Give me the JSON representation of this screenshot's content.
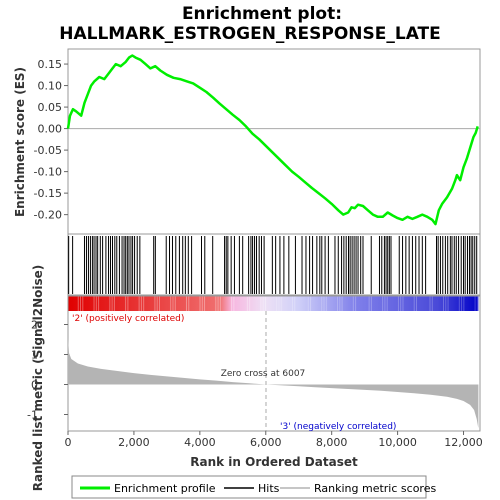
{
  "title_line1": "Enrichment plot:",
  "title_line2": "HALLMARK_ESTROGEN_RESPONSE_LATE",
  "es_ylabel": "Enrichment score (ES)",
  "metric_ylabel": "Ranked list metric (Signal2Noise)",
  "xlabel": "Rank in Ordered Dataset",
  "positive_label": "'2' (positively correlated)",
  "negative_label": "'3' (negatively correlated)",
  "zero_cross_label": "Zero cross at 6007",
  "legend": {
    "enrichment": "Enrichment profile",
    "hits": "Hits",
    "ranking": "Ranking metric scores"
  },
  "colors": {
    "profile": "#00ee00",
    "positive": "#dd0000",
    "negative": "#0000cc",
    "metric_fill": "#b4b4b4"
  },
  "chart_data": {
    "type": "line",
    "xlim": [
      0,
      12500
    ],
    "x_ticks": [
      0,
      2000,
      4000,
      6000,
      8000,
      10000,
      12000
    ],
    "x_tick_labels": [
      "0",
      "2,000",
      "4,000",
      "6,000",
      "8,000",
      "10,000",
      "12,000"
    ],
    "total_genes": 12450,
    "zero_cross": 6007,
    "es": {
      "ylim": [
        -0.245,
        0.185
      ],
      "y_ticks": [
        0.15,
        0.1,
        0.05,
        0.0,
        -0.05,
        -0.1,
        -0.15,
        -0.2
      ],
      "y_tick_labels": [
        "0.15",
        "0.10",
        "0.05",
        "0.00",
        "-0.05",
        "-0.10",
        "-0.15",
        "-0.20"
      ],
      "profile": [
        [
          0,
          0.0
        ],
        [
          60,
          0.03
        ],
        [
          150,
          0.045
        ],
        [
          250,
          0.04
        ],
        [
          400,
          0.03
        ],
        [
          500,
          0.06
        ],
        [
          600,
          0.08
        ],
        [
          700,
          0.1
        ],
        [
          800,
          0.11
        ],
        [
          950,
          0.12
        ],
        [
          1100,
          0.115
        ],
        [
          1250,
          0.13
        ],
        [
          1350,
          0.14
        ],
        [
          1450,
          0.15
        ],
        [
          1600,
          0.145
        ],
        [
          1750,
          0.155
        ],
        [
          1850,
          0.165
        ],
        [
          1950,
          0.17
        ],
        [
          2050,
          0.165
        ],
        [
          2200,
          0.16
        ],
        [
          2350,
          0.15
        ],
        [
          2500,
          0.14
        ],
        [
          2650,
          0.145
        ],
        [
          2800,
          0.135
        ],
        [
          3000,
          0.125
        ],
        [
          3200,
          0.118
        ],
        [
          3400,
          0.115
        ],
        [
          3600,
          0.11
        ],
        [
          3800,
          0.105
        ],
        [
          4000,
          0.095
        ],
        [
          4200,
          0.085
        ],
        [
          4400,
          0.072
        ],
        [
          4600,
          0.058
        ],
        [
          4800,
          0.045
        ],
        [
          5000,
          0.032
        ],
        [
          5200,
          0.02
        ],
        [
          5400,
          0.005
        ],
        [
          5600,
          -0.012
        ],
        [
          5800,
          -0.025
        ],
        [
          6000,
          -0.04
        ],
        [
          6200,
          -0.055
        ],
        [
          6400,
          -0.07
        ],
        [
          6600,
          -0.085
        ],
        [
          6800,
          -0.1
        ],
        [
          7000,
          -0.112
        ],
        [
          7200,
          -0.125
        ],
        [
          7400,
          -0.138
        ],
        [
          7600,
          -0.15
        ],
        [
          7800,
          -0.162
        ],
        [
          8000,
          -0.175
        ],
        [
          8200,
          -0.19
        ],
        [
          8350,
          -0.2
        ],
        [
          8500,
          -0.195
        ],
        [
          8600,
          -0.183
        ],
        [
          8700,
          -0.185
        ],
        [
          8800,
          -0.177
        ],
        [
          8950,
          -0.18
        ],
        [
          9100,
          -0.19
        ],
        [
          9250,
          -0.2
        ],
        [
          9400,
          -0.205
        ],
        [
          9550,
          -0.205
        ],
        [
          9700,
          -0.195
        ],
        [
          9850,
          -0.202
        ],
        [
          10000,
          -0.208
        ],
        [
          10150,
          -0.212
        ],
        [
          10300,
          -0.205
        ],
        [
          10450,
          -0.21
        ],
        [
          10600,
          -0.205
        ],
        [
          10750,
          -0.2
        ],
        [
          10900,
          -0.205
        ],
        [
          11050,
          -0.212
        ],
        [
          11150,
          -0.222
        ],
        [
          11250,
          -0.19
        ],
        [
          11350,
          -0.175
        ],
        [
          11500,
          -0.16
        ],
        [
          11650,
          -0.14
        ],
        [
          11750,
          -0.12
        ],
        [
          11800,
          -0.108
        ],
        [
          11900,
          -0.12
        ],
        [
          12000,
          -0.09
        ],
        [
          12100,
          -0.07
        ],
        [
          12200,
          -0.045
        ],
        [
          12300,
          -0.02
        ],
        [
          12370,
          -0.01
        ],
        [
          12430,
          0.005
        ]
      ]
    },
    "hits": [
      20,
      140,
      500,
      560,
      620,
      680,
      740,
      790,
      850,
      900,
      980,
      1050,
      1150,
      1230,
      1290,
      1350,
      1420,
      1480,
      1560,
      1640,
      1700,
      1750,
      1800,
      1850,
      1910,
      1960,
      2020,
      2100,
      2180,
      2600,
      2650,
      2980,
      3080,
      3170,
      3270,
      3380,
      3480,
      3560,
      3650,
      3750,
      4050,
      4150,
      4390,
      4750,
      4800,
      4850,
      4950,
      5050,
      5200,
      5300,
      5480,
      5550,
      5600,
      5660,
      5720,
      5800,
      5870,
      5950,
      6200,
      6300,
      6430,
      6550,
      6700,
      6900,
      7100,
      7220,
      7330,
      7420,
      7550,
      7640,
      7700,
      7800,
      7900,
      8100,
      8200,
      8300,
      8370,
      8440,
      8510,
      8560,
      8620,
      8680,
      8740,
      8800,
      8880,
      8950,
      9200,
      9450,
      9520,
      9600,
      9650,
      9700,
      9750,
      9800,
      10050,
      10150,
      10250,
      10350,
      10450,
      10550,
      10650,
      10750,
      10850,
      11180,
      11230,
      11300,
      11370,
      11450,
      11520,
      11600,
      11650,
      11720,
      11780,
      11850,
      11930,
      12000,
      12050,
      12120,
      12180,
      12230,
      12280,
      12340,
      12400
    ],
    "metric": {
      "ylim": [
        -1.55,
        2.45
      ],
      "y_ticks": [
        2,
        1,
        0,
        -1
      ],
      "y_tick_labels": [
        "2",
        "1",
        "0",
        "-1"
      ],
      "curve": [
        [
          0,
          1.55
        ],
        [
          30,
          1.05
        ],
        [
          100,
          0.85
        ],
        [
          300,
          0.7
        ],
        [
          600,
          0.6
        ],
        [
          1000,
          0.52
        ],
        [
          1500,
          0.45
        ],
        [
          2000,
          0.38
        ],
        [
          2500,
          0.32
        ],
        [
          3000,
          0.27
        ],
        [
          3500,
          0.22
        ],
        [
          4000,
          0.17
        ],
        [
          4500,
          0.13
        ],
        [
          5000,
          0.08
        ],
        [
          5500,
          0.04
        ],
        [
          6007,
          0.0
        ],
        [
          6500,
          -0.03
        ],
        [
          7000,
          -0.06
        ],
        [
          7500,
          -0.09
        ],
        [
          8000,
          -0.12
        ],
        [
          8500,
          -0.15
        ],
        [
          9000,
          -0.18
        ],
        [
          9500,
          -0.21
        ],
        [
          10000,
          -0.25
        ],
        [
          10500,
          -0.29
        ],
        [
          11000,
          -0.34
        ],
        [
          11500,
          -0.41
        ],
        [
          11800,
          -0.48
        ],
        [
          12000,
          -0.55
        ],
        [
          12200,
          -0.68
        ],
        [
          12320,
          -0.85
        ],
        [
          12400,
          -1.15
        ],
        [
          12440,
          -1.4
        ],
        [
          12450,
          -1.45
        ]
      ]
    }
  }
}
